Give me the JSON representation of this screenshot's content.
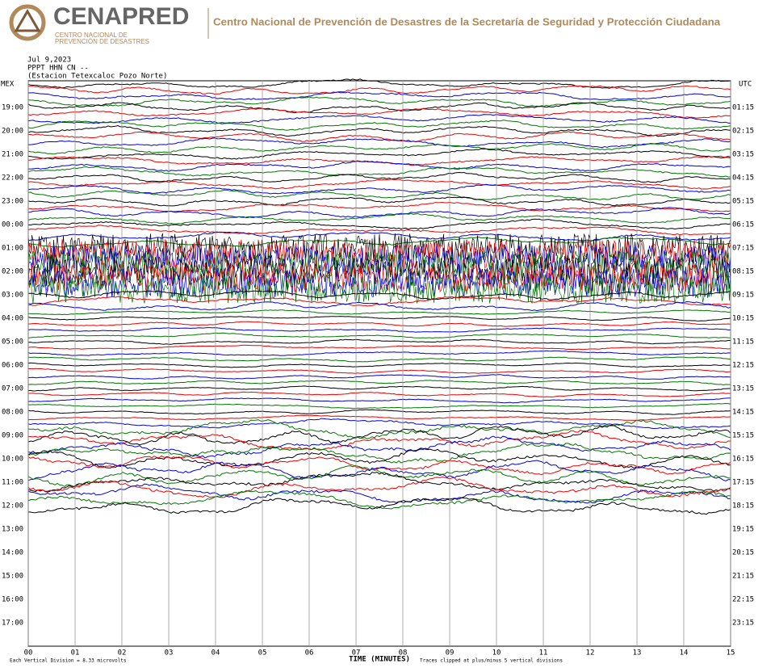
{
  "header": {
    "logo": "CENAPRED",
    "logo_subtitle": [
      "CENTRO NACIONAL DE",
      "PREVENCIÓN DE DESASTRES"
    ],
    "title": "Centro Nacional de Prevención de Desastres de la Secretaría de Seguridad y Protección Ciudadana"
  },
  "seismogram": {
    "date": "Jul 9,2023",
    "channel": "PPPT HHN CN --",
    "station": "(Estacion Tetexcaloc Pozo Norte)",
    "left_zone": "MEX",
    "right_zone": "UTC",
    "left_times": [
      "19:00",
      "20:00",
      "21:00",
      "22:00",
      "23:00",
      "00:00",
      "01:00",
      "02:00",
      "03:00",
      "04:00",
      "05:00",
      "06:00",
      "07:00",
      "08:00",
      "09:00",
      "10:00",
      "11:00",
      "12:00",
      "13:00",
      "14:00",
      "15:00",
      "16:00",
      "17:00"
    ],
    "right_times": [
      "01:15",
      "02:15",
      "03:15",
      "04:15",
      "05:15",
      "06:15",
      "07:15",
      "08:15",
      "09:15",
      "10:15",
      "11:15",
      "12:15",
      "13:15",
      "14:15",
      "15:15",
      "16:15",
      "17:15",
      "18:15",
      "19:15",
      "20:15",
      "21:15",
      "22:15",
      "23:15"
    ],
    "minutes": [
      "00",
      "01",
      "02",
      "03",
      "04",
      "05",
      "06",
      "07",
      "08",
      "09",
      "10",
      "11",
      "12",
      "13",
      "14",
      "15"
    ],
    "x_label": "TIME (MINUTES)",
    "scale_note": "Each Vertical Division = 8.33 microvolts",
    "clip_note": "Traces clipped at plus/minus 5 vertical divisions"
  }
}
